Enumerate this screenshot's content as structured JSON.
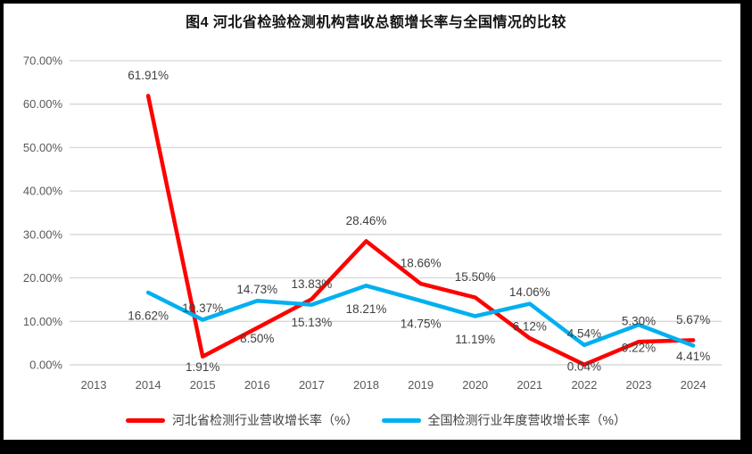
{
  "frame": {
    "border_color": "#000000",
    "background": "#ffffff"
  },
  "chart_data": {
    "type": "line",
    "title": "图4 河北省检验检测机构营收总额增长率与全国情况的比较",
    "categories": [
      "2013",
      "2014",
      "2015",
      "2016",
      "2017",
      "2018",
      "2019",
      "2020",
      "2021",
      "2022",
      "2023",
      "2024"
    ],
    "y_ticks": [
      "0.00%",
      "10.00%",
      "20.00%",
      "30.00%",
      "40.00%",
      "50.00%",
      "60.00%",
      "70.00%"
    ],
    "ylim": [
      0,
      70
    ],
    "grid": true,
    "gridline_color": "#D9D9D9",
    "tick_color": "#595959",
    "data_label_color": "#404040",
    "legend_position": "bottom",
    "series": [
      {
        "name": "河北省检测行业营收增长率（%）",
        "color": "#FF0000",
        "values": [
          null,
          61.91,
          1.91,
          8.5,
          15.13,
          28.46,
          18.66,
          15.5,
          6.12,
          0.04,
          5.3,
          5.67
        ],
        "labels": [
          null,
          "61.91%",
          "1.91%",
          "8.50%",
          "15.13%",
          "28.46%",
          "18.66%",
          "15.50%",
          "6.12%",
          "0.04%",
          "5.30%",
          "5.67%"
        ],
        "label_pos": [
          null,
          "above-far",
          "below",
          "below",
          "below-far",
          "above-far",
          "above-far",
          "above-far",
          "above",
          "center",
          "above-far",
          "above-far"
        ]
      },
      {
        "name": "全国检测行业年度营收增长率（%）",
        "color": "#00B0F0",
        "values": [
          null,
          16.62,
          10.37,
          14.73,
          13.83,
          18.21,
          14.75,
          11.19,
          14.06,
          4.54,
          9.22,
          4.41
        ],
        "labels": [
          null,
          "16.62%",
          "10.37%",
          "14.73%",
          "13.83%",
          "18.21%",
          "14.75%",
          "11.19%",
          "14.06%",
          "4.54%",
          "9.22%",
          "4.41%"
        ],
        "label_pos": [
          null,
          "below-far",
          "above",
          "above",
          "above-far",
          "below-far",
          "below-far",
          "below-far",
          "above",
          "above",
          "below-far",
          "below"
        ]
      }
    ]
  }
}
